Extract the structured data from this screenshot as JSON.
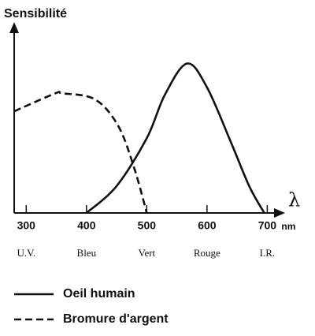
{
  "chart_data": {
    "type": "line",
    "y_label": "Sensibilité",
    "x_label": "λ",
    "x_unit": "nm",
    "xlim": [
      280,
      740
    ],
    "ylim": [
      0,
      124
    ],
    "xticks": [
      300,
      400,
      500,
      600,
      700
    ],
    "band_labels": [
      "U.V.",
      "Bleu",
      "Vert",
      "Rouge",
      "I.R."
    ],
    "series": [
      {
        "name": "Oeil humain",
        "color": "#111111",
        "style": "solid",
        "x": [
          400,
          450,
          500,
          530,
          567,
          600,
          640,
          670,
          695
        ],
        "values": [
          0,
          18,
          50,
          79,
          100,
          84,
          47,
          18,
          0
        ]
      },
      {
        "name": "Bromure d'argent",
        "color": "#111111",
        "style": "dashed",
        "x": [
          280,
          348,
          360,
          414,
          453,
          480,
          500
        ],
        "values": [
          68,
          80,
          80,
          76,
          58,
          29,
          0
        ]
      }
    ]
  }
}
